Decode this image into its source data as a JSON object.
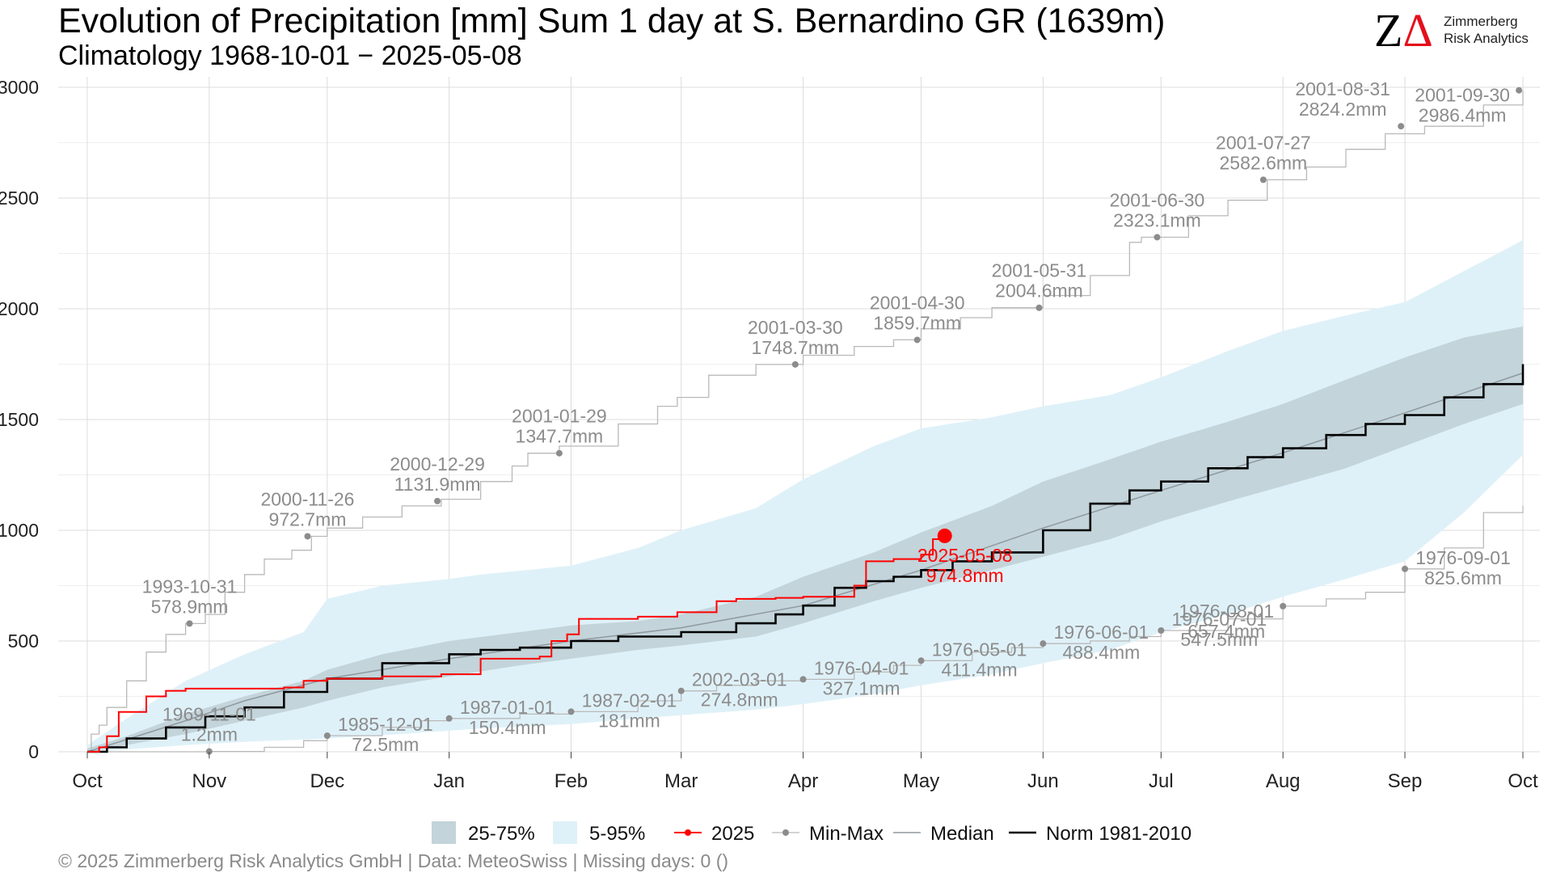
{
  "header": {
    "title": "Evolution of Precipitation [mm] Sum 1 day at S. Bernardino  GR (1639m)",
    "subtitle": "Climatology 1968-10-01 − 2025-05-08"
  },
  "logo": {
    "line1": "Zimmerberg",
    "line2": "Risk Analytics"
  },
  "footer": "©  2025 Zimmerberg Risk Analytics GmbH | Data: MeteoSwiss | Missing days: 0 ()",
  "chart_data": {
    "type": "line",
    "xlabel": "",
    "ylabel": "",
    "x_unit": "day of hydrological year (0 = Oct 1)",
    "xlim": [
      0,
      365
    ],
    "ylim": [
      0,
      3000
    ],
    "y_ticks": [
      0,
      500,
      1000,
      1500,
      2000,
      2500,
      3000
    ],
    "month_ticks": [
      {
        "label": "Oct",
        "day": 0
      },
      {
        "label": "Nov",
        "day": 31
      },
      {
        "label": "Dec",
        "day": 61
      },
      {
        "label": "Jan",
        "day": 92
      },
      {
        "label": "Feb",
        "day": 123
      },
      {
        "label": "Mar",
        "day": 151
      },
      {
        "label": "Apr",
        "day": 182
      },
      {
        "label": "May",
        "day": 212
      },
      {
        "label": "Jun",
        "day": 243
      },
      {
        "label": "Jul",
        "day": 273
      },
      {
        "label": "Aug",
        "day": 304
      },
      {
        "label": "Sep",
        "day": 335
      },
      {
        "label": "Oct",
        "day": 365
      }
    ],
    "grid": true,
    "legend_position": "bottom",
    "colors": {
      "band_25_75": "#c3d4da",
      "band_5_95": "#dff1f8",
      "current": "#ff0000",
      "minmax": "#b9b9b9",
      "minmax_points": "#8c8c8c",
      "median": "#8f9aa0",
      "norm": "#000000",
      "annotation": "#8c8c8c"
    },
    "legend": [
      {
        "key": "band25",
        "label": "25-75%"
      },
      {
        "key": "band5",
        "label": "5-95%"
      },
      {
        "key": "current",
        "label": "2025"
      },
      {
        "key": "minmax",
        "label": "Min-Max"
      },
      {
        "key": "median",
        "label": "Median"
      },
      {
        "key": "norm",
        "label": "Norm 1981-2010"
      }
    ],
    "bands": {
      "p5_95": {
        "x": [
          0,
          10,
          25,
          40,
          55,
          61,
          75,
          92,
          100,
          123,
          140,
          151,
          170,
          182,
          200,
          212,
          230,
          243,
          260,
          273,
          290,
          304,
          320,
          335,
          350,
          365
        ],
        "lower": [
          0,
          10,
          30,
          45,
          55,
          60,
          75,
          95,
          105,
          125,
          150,
          165,
          190,
          215,
          260,
          300,
          350,
          400,
          460,
          540,
          620,
          700,
          780,
          860,
          1080,
          1340
        ],
        "upper": [
          30,
          150,
          320,
          440,
          540,
          690,
          750,
          780,
          800,
          840,
          920,
          1000,
          1100,
          1230,
          1380,
          1460,
          1510,
          1560,
          1610,
          1690,
          1810,
          1900,
          1970,
          2030,
          2170,
          2310
        ]
      },
      "p25_75": {
        "x": [
          0,
          10,
          25,
          40,
          55,
          61,
          75,
          92,
          110,
          123,
          140,
          151,
          170,
          182,
          200,
          212,
          230,
          243,
          260,
          273,
          290,
          304,
          320,
          335,
          350,
          365
        ],
        "lower": [
          0,
          30,
          80,
          140,
          200,
          230,
          290,
          340,
          390,
          420,
          460,
          480,
          520,
          580,
          680,
          740,
          820,
          880,
          960,
          1040,
          1130,
          1200,
          1280,
          1380,
          1480,
          1570
        ],
        "upper": [
          15,
          70,
          170,
          250,
          320,
          370,
          440,
          500,
          540,
          570,
          590,
          620,
          700,
          790,
          900,
          990,
          1110,
          1220,
          1320,
          1400,
          1490,
          1570,
          1680,
          1780,
          1870,
          1920
        ]
      }
    },
    "series": [
      {
        "key": "median",
        "label": "Median",
        "x": [
          0,
          10,
          25,
          40,
          61,
          92,
          123,
          151,
          182,
          212,
          243,
          273,
          304,
          335,
          365
        ],
        "y": [
          0,
          55,
          140,
          230,
          330,
          420,
          500,
          560,
          660,
          820,
          1010,
          1180,
          1350,
          1530,
          1710
        ]
      },
      {
        "key": "norm",
        "label": "Norm 1981-2010",
        "x": [
          0,
          5,
          10,
          20,
          30,
          40,
          50,
          61,
          75,
          92,
          100,
          110,
          123,
          135,
          151,
          165,
          175,
          182,
          190,
          198,
          205,
          212,
          220,
          230,
          243,
          255,
          265,
          273,
          285,
          295,
          304,
          315,
          325,
          335,
          345,
          355,
          365
        ],
        "y": [
          0,
          20,
          60,
          110,
          160,
          200,
          270,
          330,
          400,
          440,
          460,
          470,
          500,
          520,
          540,
          580,
          620,
          660,
          740,
          770,
          790,
          820,
          860,
          900,
          1000,
          1120,
          1180,
          1220,
          1280,
          1330,
          1370,
          1430,
          1480,
          1520,
          1600,
          1660,
          1750
        ]
      },
      {
        "key": "current",
        "label": "2025",
        "x": [
          0,
          3,
          5,
          8,
          12,
          15,
          20,
          25,
          35,
          50,
          55,
          61,
          75,
          90,
          100,
          108,
          115,
          118,
          122,
          125,
          140,
          150,
          160,
          165,
          175,
          182,
          190,
          195,
          198,
          200,
          205,
          212,
          215,
          218
        ],
        "y": [
          0,
          20,
          70,
          180,
          180,
          250,
          275,
          285,
          285,
          290,
          320,
          330,
          340,
          350,
          420,
          420,
          430,
          500,
          530,
          600,
          610,
          630,
          680,
          690,
          695,
          700,
          700,
          750,
          860,
          860,
          870,
          890,
          960,
          974.8
        ]
      },
      {
        "key": "max",
        "label": "Max",
        "x": [
          0,
          1,
          3,
          5,
          10,
          15,
          20,
          25,
          30,
          35,
          40,
          45,
          52,
          57,
          61,
          70,
          80,
          90,
          100,
          108,
          112,
          120,
          135,
          145,
          150,
          158,
          170,
          182,
          195,
          205,
          212,
          222,
          230,
          243,
          255,
          265,
          268,
          280,
          290,
          300,
          310,
          320,
          330,
          340,
          355,
          365
        ],
        "y": [
          0,
          80,
          120,
          200,
          320,
          450,
          530,
          578.9,
          620,
          720,
          800,
          870,
          910,
          972.7,
          1010,
          1060,
          1110,
          1140,
          1220,
          1290,
          1347.7,
          1380,
          1480,
          1560,
          1600,
          1700,
          1748.7,
          1790,
          1830,
          1859.7,
          1910,
          1960,
          2004.6,
          2060,
          2150,
          2300,
          2323.1,
          2420,
          2490,
          2582.6,
          2640,
          2720,
          2790,
          2824.2,
          2920,
          2986.4
        ]
      },
      {
        "key": "min",
        "label": "Min",
        "x": [
          0,
          10,
          25,
          31,
          45,
          55,
          61,
          75,
          85,
          92,
          110,
          123,
          140,
          151,
          160,
          170,
          182,
          195,
          205,
          212,
          225,
          235,
          243,
          255,
          265,
          273,
          290,
          304,
          315,
          325,
          335,
          345,
          355,
          365
        ],
        "y": [
          0,
          0,
          0,
          1.2,
          20,
          50,
          72.5,
          110,
          140,
          150.4,
          170,
          181,
          230,
          274.8,
          300,
          320,
          327.1,
          360,
          390,
          411.4,
          450,
          470,
          488.4,
          500,
          520,
          547.5,
          600,
          657.4,
          690,
          720,
          825.6,
          920,
          1080,
          1110
        ]
      }
    ],
    "minmax_points": [
      {
        "day": 26,
        "value": 578.9,
        "date": "1993-10-31",
        "label": "578.9mm",
        "anchor": "above"
      },
      {
        "day": 31,
        "value": 1.2,
        "date": "1969-11-01",
        "label": "1.2mm",
        "anchor": "above"
      },
      {
        "day": 56,
        "value": 972.7,
        "date": "2000-11-26",
        "label": "972.7mm",
        "anchor": "above"
      },
      {
        "day": 61,
        "value": 72.5,
        "date": "1985-12-01",
        "label": "72.5mm",
        "anchor": "below-right"
      },
      {
        "day": 89,
        "value": 1131.9,
        "date": "2000-12-29",
        "label": "1131.9mm",
        "anchor": "above"
      },
      {
        "day": 92,
        "value": 150.4,
        "date": "1987-01-01",
        "label": "150.4mm",
        "anchor": "below-right"
      },
      {
        "day": 120,
        "value": 1347.7,
        "date": "2001-01-29",
        "label": "1347.7mm",
        "anchor": "above"
      },
      {
        "day": 123,
        "value": 181,
        "date": "1987-02-01",
        "label": "181mm",
        "anchor": "below-right"
      },
      {
        "day": 151,
        "value": 274.8,
        "date": "2002-03-01",
        "label": "274.8mm",
        "anchor": "below-right"
      },
      {
        "day": 180,
        "value": 1748.7,
        "date": "2001-03-30",
        "label": "1748.7mm",
        "anchor": "above"
      },
      {
        "day": 182,
        "value": 327.1,
        "date": "1976-04-01",
        "label": "327.1mm",
        "anchor": "below-right"
      },
      {
        "day": 211,
        "value": 1859.7,
        "date": "2001-04-30",
        "label": "1859.7mm",
        "anchor": "above"
      },
      {
        "day": 212,
        "value": 411.4,
        "date": "1976-05-01",
        "label": "411.4mm",
        "anchor": "below-right"
      },
      {
        "day": 242,
        "value": 2004.6,
        "date": "2001-05-31",
        "label": "2004.6mm",
        "anchor": "above"
      },
      {
        "day": 243,
        "value": 488.4,
        "date": "1976-06-01",
        "label": "488.4mm",
        "anchor": "below-right"
      },
      {
        "day": 272,
        "value": 2323.1,
        "date": "2001-06-30",
        "label": "2323.1mm",
        "anchor": "above"
      },
      {
        "day": 273,
        "value": 547.5,
        "date": "1976-07-01",
        "label": "547.5mm",
        "anchor": "below-right"
      },
      {
        "day": 299,
        "value": 2582.6,
        "date": "2001-07-27",
        "label": "2582.6mm",
        "anchor": "above"
      },
      {
        "day": 304,
        "value": 657.4,
        "date": "1976-08-01",
        "label": "657.4mm",
        "anchor": "below-left"
      },
      {
        "day": 334,
        "value": 2824.2,
        "date": "2001-08-31",
        "label": "2824.2mm",
        "anchor": "above-left"
      },
      {
        "day": 335,
        "value": 825.6,
        "date": "1976-09-01",
        "label": "825.6mm",
        "anchor": "below-right"
      },
      {
        "day": 364,
        "value": 2986.4,
        "date": "2001-09-30",
        "label": "2986.4mm",
        "anchor": "below-left"
      }
    ],
    "current_point": {
      "day": 218,
      "value": 974.8,
      "date": "2025-05-08",
      "label": "974.8mm"
    }
  }
}
